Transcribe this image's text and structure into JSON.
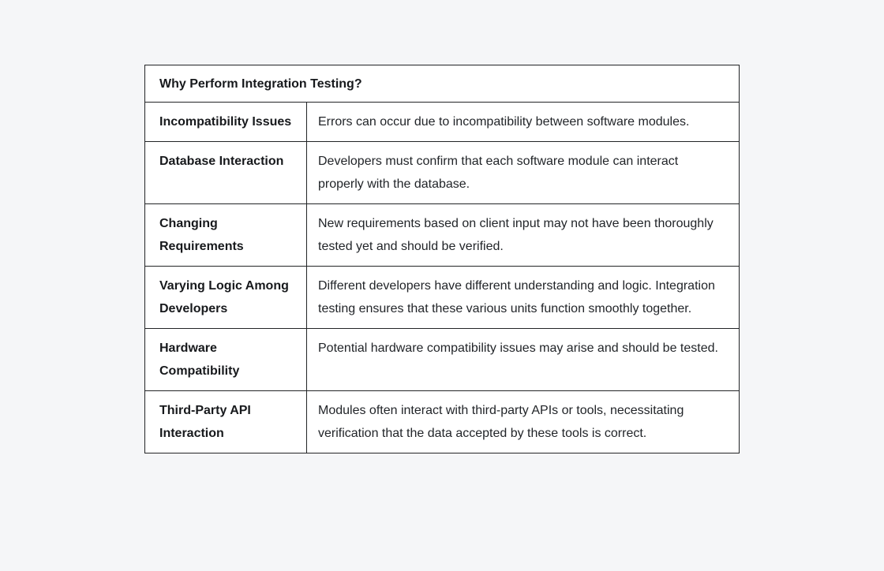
{
  "colors": {
    "page_background": "#f5f6f8",
    "table_background": "#ffffff",
    "border": "#222426",
    "text": "#1c1e21"
  },
  "table": {
    "title": "Why Perform Integration Testing?",
    "rows": [
      {
        "term": "Incompatibility Issues",
        "description": "Errors can occur due to incompatibility between software modules."
      },
      {
        "term": "Database Interaction",
        "description": "Developers must confirm that each software module can interact properly with the database."
      },
      {
        "term": "Changing Requirements",
        "description": "New requirements based on client input may not have been thoroughly tested yet and should be verified."
      },
      {
        "term": "Varying Logic Among Developers",
        "description": "Different developers have different understanding and logic. Integration testing ensures that these various units function smoothly together."
      },
      {
        "term": "Hardware Compatibility",
        "description": "Potential hardware compatibility issues may arise and should be tested."
      },
      {
        "term": "Third-Party API Interaction",
        "description": "Modules often interact with third-party APIs or tools, necessitating verification that the data accepted by these tools is correct."
      }
    ]
  }
}
